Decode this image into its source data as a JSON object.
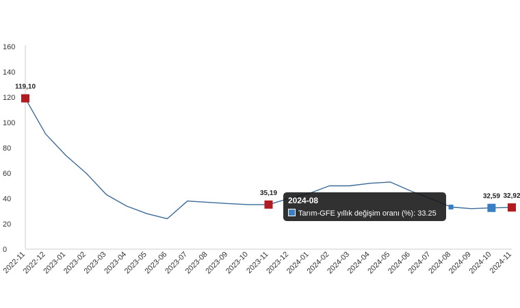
{
  "chart_data": {
    "type": "line",
    "categories": [
      "2022-11",
      "2022-12",
      "2023-01",
      "2023-02",
      "2023-03",
      "2023-04",
      "2023-05",
      "2023-06",
      "2023-07",
      "2023-08",
      "2023-09",
      "2023-10",
      "2023-11",
      "2023-12",
      "2024-01",
      "2024-02",
      "2024-03",
      "2024-04",
      "2024-05",
      "2024-06",
      "2024-07",
      "2024-08",
      "2024-09",
      "2024-10",
      "2024-11"
    ],
    "series": [
      {
        "name": "Tarım-GFE yıllık değişim oranı (%)",
        "color": "#3a6a99",
        "values": [
          119.1,
          91,
          74,
          60,
          43,
          34,
          28,
          24,
          38,
          37,
          36,
          35.19,
          35.19,
          40,
          44,
          50,
          50,
          52,
          53,
          46,
          40,
          33.25,
          32,
          32.59,
          32.92
        ]
      }
    ],
    "ylim": [
      0,
      160
    ],
    "yticks": [
      0,
      20,
      40,
      60,
      80,
      100,
      120,
      140,
      160
    ],
    "grid": false,
    "highlighted_points": [
      {
        "category": "2022-11",
        "label": "119,10",
        "color": "#b01c22"
      },
      {
        "category": "2023-11",
        "label": "35,19",
        "color": "#b01c22"
      },
      {
        "category": "2024-10",
        "label": "32,59",
        "color": "#3a7fc4"
      },
      {
        "category": "2024-11",
        "label": "32,92",
        "color": "#b01c22"
      }
    ],
    "hovered_category": "2024-08"
  },
  "tooltip": {
    "title": "2024-08",
    "text": "Tarım-GFE yıllık değişim oranı (%): 33.25"
  }
}
